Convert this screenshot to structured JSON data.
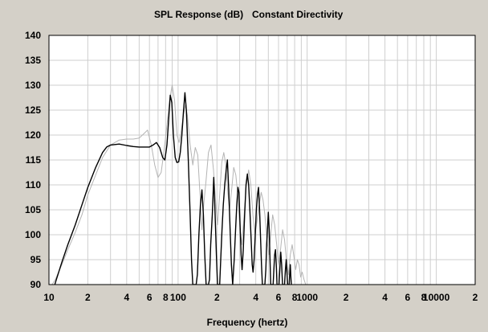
{
  "chart_data": {
    "type": "line",
    "title": "SPL Response (dB)",
    "subtitle": "Constant Directivity",
    "xlabel": "Frequency (hertz)",
    "ylabel": "",
    "xscale": "log",
    "xlim": [
      10,
      20000
    ],
    "ylim": [
      90,
      140
    ],
    "grid": true,
    "yticks": [
      90,
      95,
      100,
      105,
      110,
      115,
      120,
      125,
      130,
      135,
      140
    ],
    "xtick_labels": [
      {
        "f": 10,
        "label": "10"
      },
      {
        "f": 20,
        "label": "2"
      },
      {
        "f": 40,
        "label": "4"
      },
      {
        "f": 60,
        "label": "6"
      },
      {
        "f": 80,
        "label": "8"
      },
      {
        "f": 100,
        "label": "100"
      },
      {
        "f": 200,
        "label": "2"
      },
      {
        "f": 400,
        "label": "4"
      },
      {
        "f": 600,
        "label": "6"
      },
      {
        "f": 800,
        "label": "8"
      },
      {
        "f": 1000,
        "label": "1000"
      },
      {
        "f": 2000,
        "label": "2"
      },
      {
        "f": 4000,
        "label": "4"
      },
      {
        "f": 6000,
        "label": "6"
      },
      {
        "f": 8000,
        "label": "8"
      },
      {
        "f": 10000,
        "label": "10000"
      },
      {
        "f": 20000,
        "label": "2"
      }
    ],
    "series": [
      {
        "color": "#b4b4b4",
        "points": [
          [
            10,
            89
          ],
          [
            11.2,
            91
          ],
          [
            12.6,
            94
          ],
          [
            14,
            97
          ],
          [
            16,
            100.5
          ],
          [
            18,
            104
          ],
          [
            20,
            108
          ],
          [
            23,
            112
          ],
          [
            26,
            115.5
          ],
          [
            30,
            118
          ],
          [
            35,
            119
          ],
          [
            40,
            119.2
          ],
          [
            45,
            119.2
          ],
          [
            50,
            119.4
          ],
          [
            55,
            120.4
          ],
          [
            58,
            121
          ],
          [
            62,
            118
          ],
          [
            66,
            114
          ],
          [
            70,
            111.5
          ],
          [
            74,
            112.5
          ],
          [
            78,
            117
          ],
          [
            82,
            122
          ],
          [
            86,
            127
          ],
          [
            90,
            130
          ],
          [
            94,
            127
          ],
          [
            98,
            120
          ],
          [
            102,
            118.5
          ],
          [
            106,
            121
          ],
          [
            110,
            124
          ],
          [
            114,
            126
          ],
          [
            118,
            124
          ],
          [
            124,
            118
          ],
          [
            130,
            114
          ],
          [
            136,
            117.5
          ],
          [
            142,
            116
          ],
          [
            148,
            108
          ],
          [
            153,
            101
          ],
          [
            158,
            106
          ],
          [
            165,
            111
          ],
          [
            172,
            116.5
          ],
          [
            180,
            118
          ],
          [
            188,
            113
          ],
          [
            195,
            107
          ],
          [
            202,
            102
          ],
          [
            210,
            108
          ],
          [
            218,
            114.5
          ],
          [
            226,
            116.5
          ],
          [
            234,
            114
          ],
          [
            242,
            109
          ],
          [
            250,
            105
          ],
          [
            260,
            109
          ],
          [
            270,
            113.5
          ],
          [
            280,
            112
          ],
          [
            290,
            108
          ],
          [
            300,
            102
          ],
          [
            312,
            98
          ],
          [
            325,
            104
          ],
          [
            338,
            110
          ],
          [
            352,
            113
          ],
          [
            366,
            110
          ],
          [
            380,
            104
          ],
          [
            395,
            100
          ],
          [
            410,
            103
          ],
          [
            425,
            106
          ],
          [
            440,
            108.5
          ],
          [
            455,
            107
          ],
          [
            470,
            104
          ],
          [
            488,
            99
          ],
          [
            505,
            96
          ],
          [
            522,
            100
          ],
          [
            540,
            104
          ],
          [
            560,
            102
          ],
          [
            580,
            98
          ],
          [
            600,
            94
          ],
          [
            622,
            97
          ],
          [
            645,
            101
          ],
          [
            668,
            99
          ],
          [
            690,
            95
          ],
          [
            715,
            92
          ],
          [
            740,
            96
          ],
          [
            765,
            98
          ],
          [
            790,
            95.5
          ],
          [
            815,
            93
          ],
          [
            840,
            95
          ],
          [
            865,
            94
          ],
          [
            890,
            91.5
          ],
          [
            915,
            92.5
          ],
          [
            945,
            91
          ],
          [
            975,
            90
          ]
        ]
      },
      {
        "color": "#000000",
        "points": [
          [
            10.8,
            89
          ],
          [
            11.4,
            91
          ],
          [
            12.6,
            94.5
          ],
          [
            14,
            98
          ],
          [
            16,
            102
          ],
          [
            18,
            106
          ],
          [
            20,
            109.5
          ],
          [
            23,
            113.5
          ],
          [
            26,
            116.5
          ],
          [
            28,
            117.6
          ],
          [
            30,
            118
          ],
          [
            35,
            118.2
          ],
          [
            40,
            117.9
          ],
          [
            45,
            117.7
          ],
          [
            50,
            117.6
          ],
          [
            55,
            117.6
          ],
          [
            60,
            117.6
          ],
          [
            64,
            118
          ],
          [
            68,
            118.5
          ],
          [
            72,
            117.5
          ],
          [
            76,
            115.5
          ],
          [
            79,
            115
          ],
          [
            82,
            118
          ],
          [
            85,
            124
          ],
          [
            87,
            128
          ],
          [
            89.5,
            126.5
          ],
          [
            92,
            120
          ],
          [
            95,
            115.5
          ],
          [
            98,
            114.5
          ],
          [
            101,
            114.6
          ],
          [
            104,
            116.5
          ],
          [
            107,
            120
          ],
          [
            110,
            124.5
          ],
          [
            113,
            128.5
          ],
          [
            116,
            125
          ],
          [
            120,
            115
          ],
          [
            124,
            104
          ],
          [
            127,
            95
          ],
          [
            130,
            90
          ],
          [
            138,
            90
          ],
          [
            141,
            92
          ],
          [
            145,
            100
          ],
          [
            149,
            106
          ],
          [
            153,
            109
          ],
          [
            157,
            104
          ],
          [
            161,
            96
          ],
          [
            165,
            90
          ],
          [
            172,
            90
          ],
          [
            175,
            91
          ],
          [
            179,
            98
          ],
          [
            184,
            104
          ],
          [
            189,
            111.5
          ],
          [
            193,
            105
          ],
          [
            198,
            96
          ],
          [
            202,
            90
          ],
          [
            210,
            90
          ],
          [
            214,
            95
          ],
          [
            219,
            101
          ],
          [
            224,
            106
          ],
          [
            230,
            110
          ],
          [
            236,
            113
          ],
          [
            241,
            115
          ],
          [
            247,
            109
          ],
          [
            253,
            101
          ],
          [
            259,
            94
          ],
          [
            265,
            90
          ],
          [
            272,
            95
          ],
          [
            279,
            101
          ],
          [
            285,
            106
          ],
          [
            291,
            109.5
          ],
          [
            296,
            108.5
          ],
          [
            302,
            102
          ],
          [
            308,
            96
          ],
          [
            313,
            93
          ],
          [
            320,
            97
          ],
          [
            328,
            104
          ],
          [
            336,
            110
          ],
          [
            344,
            112.2
          ],
          [
            352,
            110
          ],
          [
            360,
            105
          ],
          [
            368,
            99
          ],
          [
            375,
            94
          ],
          [
            381,
            92.5
          ],
          [
            388,
            95
          ],
          [
            396,
            100
          ],
          [
            404,
            105
          ],
          [
            412,
            108
          ],
          [
            420,
            109.5
          ],
          [
            428,
            105
          ],
          [
            436,
            99
          ],
          [
            443,
            94
          ],
          [
            450,
            90
          ],
          [
            470,
            90
          ],
          [
            478,
            93
          ],
          [
            485,
            98
          ],
          [
            492,
            101
          ],
          [
            500,
            104.5
          ],
          [
            508,
            101
          ],
          [
            515,
            95
          ],
          [
            522,
            90
          ],
          [
            545,
            90
          ],
          [
            552,
            93
          ],
          [
            560,
            96
          ],
          [
            568,
            97
          ],
          [
            576,
            94
          ],
          [
            584,
            90
          ],
          [
            605,
            90
          ],
          [
            614,
            93
          ],
          [
            624,
            96.5
          ],
          [
            634,
            94
          ],
          [
            644,
            90
          ],
          [
            668,
            90
          ],
          [
            678,
            93
          ],
          [
            688,
            95
          ],
          [
            698,
            92
          ],
          [
            706,
            90
          ],
          [
            725,
            90
          ],
          [
            732,
            92
          ],
          [
            740,
            94
          ],
          [
            748,
            91.5
          ],
          [
            754,
            90
          ]
        ]
      }
    ]
  }
}
